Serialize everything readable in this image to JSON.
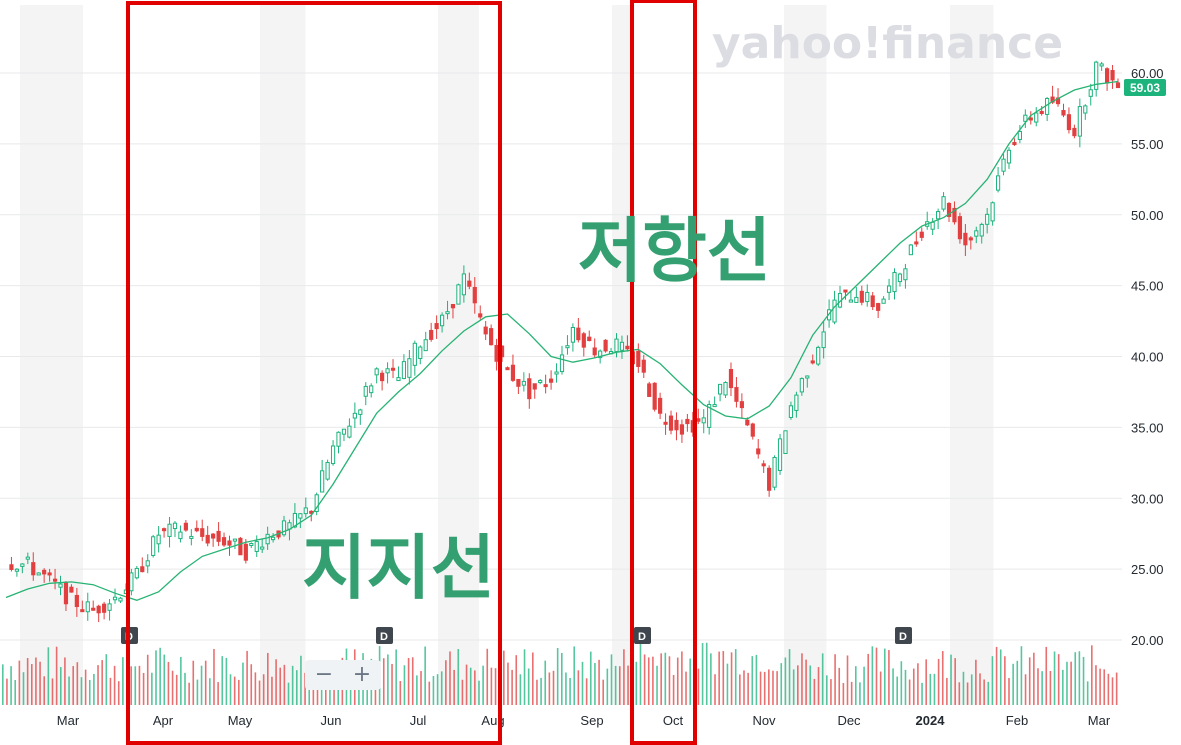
{
  "watermark": "yahoo!finance",
  "annotations": {
    "support": "지지선",
    "resistance": "저항선"
  },
  "price_label": "59.03",
  "zoom": {
    "minus": "−",
    "plus": "+"
  },
  "dividend_marker": "D",
  "colors": {
    "up": "#1db37d",
    "down": "#e24040",
    "ma": "#27b373",
    "box": "#e00000",
    "band": "#f4f4f4",
    "grid": "#e8e9eb"
  },
  "chart_data": {
    "type": "candlestick",
    "y_ticks": [
      "20.00",
      "25.00",
      "30.00",
      "35.00",
      "40.00",
      "45.00",
      "50.00",
      "55.00",
      "60.00"
    ],
    "x_ticks": [
      "Mar",
      "Apr",
      "May",
      "Jun",
      "Jul",
      "Aug",
      "Sep",
      "Oct",
      "Nov",
      "Dec",
      "2024",
      "Feb",
      "Mar"
    ],
    "ylim": [
      15.5,
      65
    ],
    "last_price": 59.03,
    "dividend_dates": [
      "Mar",
      "Jun",
      "Sep",
      "Dec"
    ],
    "series": [
      {
        "name": "Close (approx. weekly)",
        "x": [
          "Feb",
          "Feb",
          "Mar",
          "Mar",
          "Mar",
          "Mar",
          "Apr",
          "Apr",
          "Apr",
          "Apr",
          "May",
          "May",
          "May",
          "May",
          "Jun",
          "Jun",
          "Jun",
          "Jun",
          "Jul",
          "Jul",
          "Jul",
          "Jul",
          "Aug",
          "Aug",
          "Aug",
          "Aug",
          "Sep",
          "Sep",
          "Sep",
          "Sep",
          "Oct",
          "Oct",
          "Oct",
          "Oct",
          "Nov",
          "Nov",
          "Nov",
          "Nov",
          "Dec",
          "Dec",
          "Dec",
          "Dec",
          "Jan",
          "Jan",
          "Jan",
          "Jan",
          "Feb",
          "Feb",
          "Feb",
          "Feb",
          "Mar",
          "Mar"
        ],
        "values": [
          25.5,
          25.3,
          24.2,
          22.8,
          22.1,
          23.0,
          24.6,
          27.5,
          27.8,
          27.3,
          27.0,
          26.2,
          27.4,
          28.0,
          29.4,
          33.5,
          36.0,
          39.0,
          38.5,
          41.0,
          42.5,
          45.5,
          41.5,
          39.0,
          37.5,
          38.5,
          42.0,
          40.5,
          40.8,
          39.5,
          35.8,
          35.0,
          35.5,
          38.5,
          35.0,
          31.0,
          36.5,
          40.0,
          44.0,
          44.5,
          43.5,
          46.0,
          49.0,
          51.0,
          48.0,
          50.0,
          55.0,
          57.0,
          58.0,
          56.0,
          60.5,
          59.03
        ]
      },
      {
        "name": "Moving average",
        "values": [
          23.0,
          23.6,
          24.0,
          24.1,
          23.9,
          23.3,
          22.8,
          23.4,
          24.8,
          25.9,
          26.4,
          26.9,
          27.2,
          27.8,
          28.8,
          31.0,
          33.5,
          36.0,
          37.5,
          38.8,
          40.4,
          41.8,
          42.8,
          43.0,
          41.6,
          40.0,
          39.6,
          39.9,
          40.3,
          40.5,
          39.5,
          38.0,
          36.6,
          35.8,
          35.6,
          36.5,
          38.5,
          41.5,
          43.5,
          45.0,
          46.5,
          48.0,
          49.2,
          49.8,
          50.8,
          52.5,
          55.0,
          57.0,
          58.0,
          58.8,
          59.2,
          59.4
        ]
      }
    ]
  }
}
